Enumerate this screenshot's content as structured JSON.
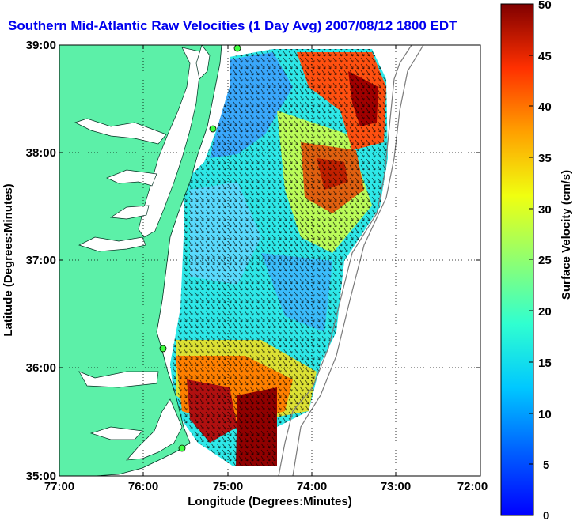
{
  "title": "Southern Mid-Atlantic Raw Velocities (1 Day Avg) 2007/08/12 1800 EDT",
  "title_color": "#0000ee",
  "land_color": "#5cf0a8",
  "x_axis": {
    "label": "Longitude (Degrees:Minutes)",
    "ticks": [
      "77:00",
      "76:00",
      "75:00",
      "74:00",
      "73:00",
      "72:00"
    ]
  },
  "y_axis": {
    "label": "Latitude (Degrees:Minutes)",
    "ticks": [
      "39:00",
      "38:00",
      "37:00",
      "36:00",
      "35:00"
    ]
  },
  "colorbar": {
    "label": "Surface Velocity (cm/s)",
    "ticks": [
      "50",
      "45",
      "40",
      "35",
      "30",
      "25",
      "20",
      "15",
      "10",
      "5",
      "0"
    ],
    "range": [
      0,
      50
    ]
  },
  "chart_data": {
    "type": "heatmap",
    "title": "Southern Mid-Atlantic Raw Velocities (1 Day Avg) 2007/08/12 1800 EDT",
    "xlabel": "Longitude (Degrees:Minutes)",
    "ylabel": "Latitude (Degrees:Minutes)",
    "xlim": [
      -77,
      -72
    ],
    "ylim": [
      35,
      39
    ],
    "value_label": "Surface Velocity (cm/s)",
    "value_range": [
      0,
      50
    ],
    "grid": true,
    "approximate_regions": [
      {
        "area": "northeast offshore near 73:10 W 38:45 N",
        "velocity_cm_s": 42
      },
      {
        "area": "central offshore near 73:45 W 37:55 N",
        "velocity_cm_s": 38
      },
      {
        "area": "inner shelf off Delaware/Maryland",
        "velocity_cm_s": 8
      },
      {
        "area": "mid shelf near 74:30 W 37:00 N",
        "velocity_cm_s": 14
      },
      {
        "area": "near Cape Hatteras 75:30 W 35:30 N",
        "velocity_cm_s": 48
      },
      {
        "area": "south offshore near 74:40 W 35:25 N",
        "velocity_cm_s": 49
      },
      {
        "area": "shelf off Virginia 75:00 W 36:10 N",
        "velocity_cm_s": 30
      }
    ]
  }
}
